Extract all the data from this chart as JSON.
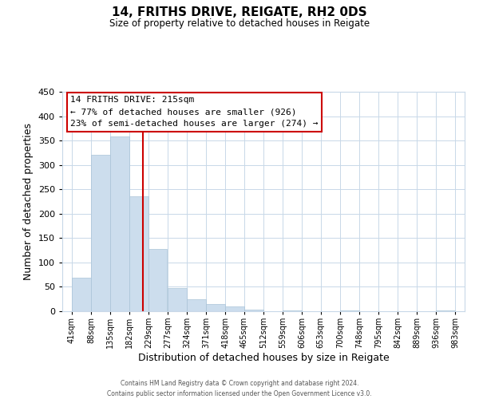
{
  "title": "14, FRITHS DRIVE, REIGATE, RH2 0DS",
  "subtitle": "Size of property relative to detached houses in Reigate",
  "xlabel": "Distribution of detached houses by size in Reigate",
  "ylabel": "Number of detached properties",
  "bar_color": "#ccdded",
  "bar_edge_color": "#aac4d8",
  "background_color": "#ffffff",
  "grid_color": "#c8d8e8",
  "vline_x": 215,
  "vline_color": "#cc0000",
  "bin_edges": [
    41,
    88,
    135,
    182,
    229,
    277,
    324,
    371,
    418,
    465,
    512,
    559,
    606,
    653,
    700,
    748,
    795,
    842,
    889,
    936,
    983
  ],
  "bin_labels": [
    "41sqm",
    "88sqm",
    "135sqm",
    "182sqm",
    "229sqm",
    "277sqm",
    "324sqm",
    "371sqm",
    "418sqm",
    "465sqm",
    "512sqm",
    "559sqm",
    "606sqm",
    "653sqm",
    "700sqm",
    "748sqm",
    "795sqm",
    "842sqm",
    "889sqm",
    "936sqm",
    "983sqm"
  ],
  "counts": [
    68,
    320,
    358,
    235,
    127,
    48,
    25,
    15,
    10,
    3,
    0,
    2,
    0,
    0,
    1,
    0,
    0,
    0,
    0,
    1
  ],
  "ylim": [
    0,
    450
  ],
  "yticks": [
    0,
    50,
    100,
    150,
    200,
    250,
    300,
    350,
    400,
    450
  ],
  "annotation_title": "14 FRITHS DRIVE: 215sqm",
  "annotation_line1": "← 77% of detached houses are smaller (926)",
  "annotation_line2": "23% of semi-detached houses are larger (274) →",
  "annotation_box_color": "#ffffff",
  "annotation_box_edge": "#cc0000",
  "footer_line1": "Contains HM Land Registry data © Crown copyright and database right 2024.",
  "footer_line2": "Contains public sector information licensed under the Open Government Licence v3.0."
}
